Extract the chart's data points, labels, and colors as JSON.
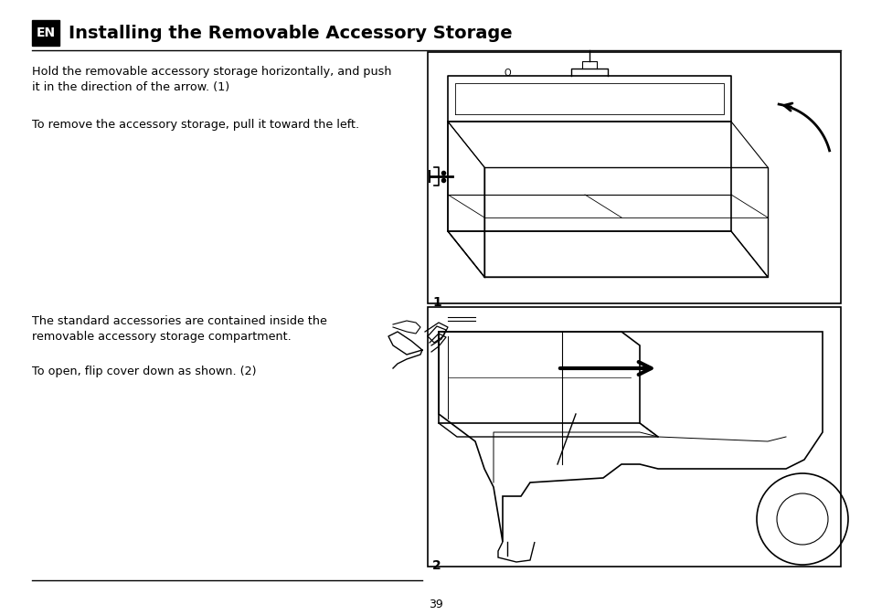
{
  "background_color": "#ffffff",
  "page_width": 9.54,
  "page_height": 6.73,
  "title_text": "Installing the Removable Accessory Storage",
  "en_label": "EN",
  "title_fontsize": 14,
  "body_fontsize": 9.2,
  "label_fontsize": 10,
  "page_num_fontsize": 9,
  "text_color": "#000000",
  "para1_lines": [
    "Hold the removable accessory storage horizontally, and push",
    "it in the direction of the arrow. (1)"
  ],
  "para2_text": "To remove the accessory storage, pull it toward the left.",
  "para3_line1": "The standard accessories are contained inside the",
  "para3_line2": "removable accessory storage compartment.",
  "para4_text": "To open, flip cover down as shown. (2)",
  "page_num": "39"
}
